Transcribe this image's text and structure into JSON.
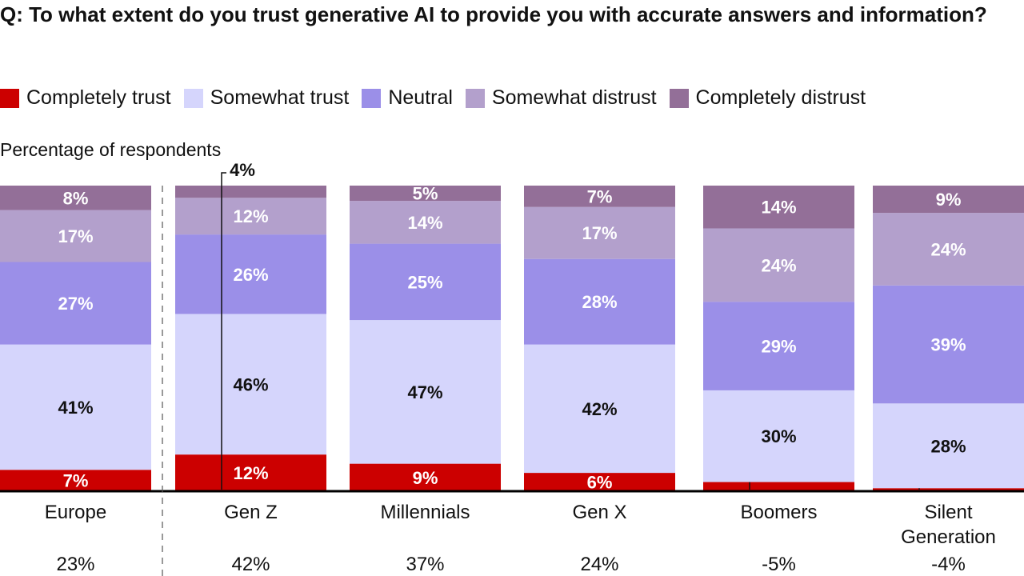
{
  "title": "Q: To what extent do you trust generative AI to provide you with accurate answers and information?",
  "subtitle": "Percentage of respondents",
  "chart_data": {
    "type": "stacked-bar",
    "title": "Q: To what extent do you trust generative AI to provide you with accurate answers and information?",
    "ylabel": "Percentage of respondents",
    "legend_position": "top",
    "categories": [
      "Europe",
      "Gen Z",
      "Millennials",
      "Gen X",
      "Boomers",
      "Silent Generation"
    ],
    "net_values": [
      "23%",
      "42%",
      "37%",
      "24%",
      "-5%",
      "-4%"
    ],
    "series": [
      {
        "name": "Completely trust",
        "color": "#cc0000",
        "values": [
          7,
          12,
          9,
          6,
          3,
          1
        ]
      },
      {
        "name": "Somewhat trust",
        "color": "#d5d5fc",
        "values": [
          41,
          46,
          47,
          42,
          30,
          28
        ]
      },
      {
        "name": "Neutral",
        "color": "#9b8fe8",
        "values": [
          27,
          26,
          25,
          28,
          29,
          39
        ]
      },
      {
        "name": "Somewhat distrust",
        "color": "#b3a0cc",
        "values": [
          17,
          12,
          14,
          17,
          24,
          24
        ]
      },
      {
        "name": "Completely distrust",
        "color": "#936f98",
        "values": [
          8,
          4,
          5,
          7,
          14,
          9
        ]
      }
    ]
  }
}
